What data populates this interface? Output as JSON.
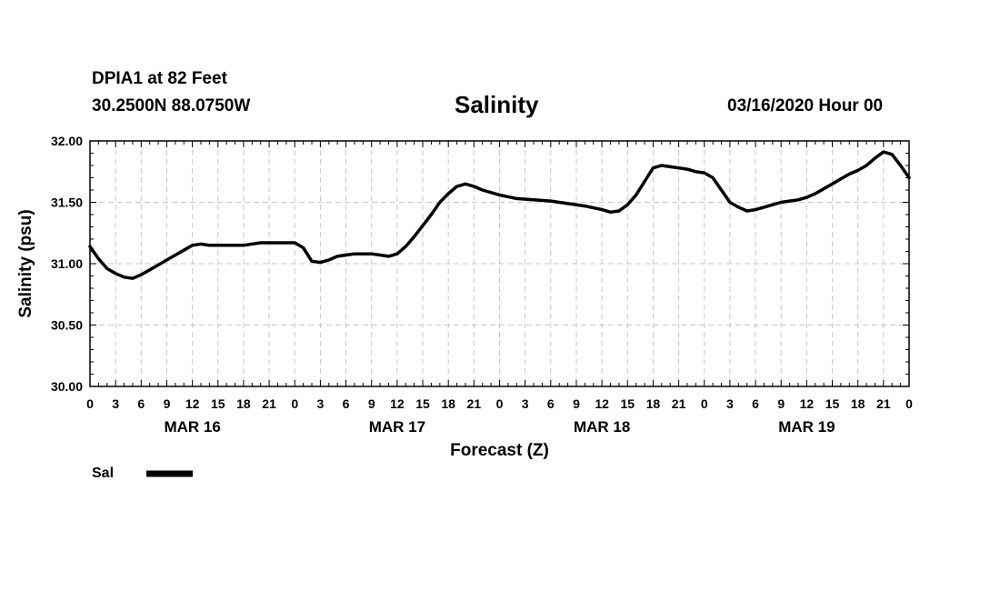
{
  "header": {
    "station": "DPIA1 at 82 Feet",
    "coords": "30.2500N 88.0750W",
    "run": "03/16/2020 Hour 00"
  },
  "chart_data": {
    "type": "line",
    "title": "Salinity",
    "xlabel": "Forecast (Z)",
    "ylabel": "Salinity (psu)",
    "ylim": [
      30.0,
      32.0
    ],
    "yticks": [
      30.0,
      30.5,
      31.0,
      31.5,
      32.0
    ],
    "ytick_labels": [
      "30.00",
      "30.50",
      "31.00",
      "31.50",
      "32.00"
    ],
    "xlim_hours": [
      0,
      96
    ],
    "xtick_step_hours": 3,
    "xtick_labels": [
      "0",
      "3",
      "6",
      "9",
      "12",
      "15",
      "18",
      "21",
      "0",
      "3",
      "6",
      "9",
      "12",
      "15",
      "18",
      "21",
      "0",
      "3",
      "6",
      "9",
      "12",
      "15",
      "18",
      "21",
      "0",
      "3",
      "6",
      "9",
      "12",
      "15",
      "18",
      "21",
      "0"
    ],
    "day_labels": [
      "MAR 16",
      "MAR 17",
      "MAR 18",
      "MAR 19"
    ],
    "grid": true,
    "legend": {
      "position": "bottom-left",
      "entries": [
        {
          "name": "Sal",
          "color": "#000000"
        }
      ]
    },
    "series": [
      {
        "name": "Sal",
        "color": "#000000",
        "x_hours": [
          0,
          1,
          2,
          3,
          4,
          5,
          6,
          7,
          8,
          9,
          10,
          11,
          12,
          13,
          14,
          16,
          18,
          20,
          22,
          23,
          24,
          25,
          26,
          27,
          28,
          29,
          30,
          31,
          32,
          33,
          34,
          35,
          36,
          37,
          38,
          39,
          40,
          41,
          42,
          43,
          44,
          45,
          46,
          48,
          50,
          52,
          54,
          56,
          58,
          60,
          61,
          62,
          63,
          64,
          65,
          66,
          67,
          68,
          69,
          70,
          71,
          72,
          73,
          74,
          75,
          76,
          77,
          78,
          79,
          80,
          81,
          82,
          83,
          84,
          85,
          86,
          87,
          88,
          89,
          90,
          91,
          92,
          93,
          94,
          95,
          96
        ],
        "values": [
          31.14,
          31.04,
          30.96,
          30.92,
          30.89,
          30.88,
          30.91,
          30.95,
          30.99,
          31.03,
          31.07,
          31.11,
          31.15,
          31.16,
          31.15,
          31.15,
          31.15,
          31.17,
          31.17,
          31.17,
          31.17,
          31.13,
          31.02,
          31.01,
          31.03,
          31.06,
          31.07,
          31.08,
          31.08,
          31.08,
          31.07,
          31.06,
          31.08,
          31.14,
          31.22,
          31.31,
          31.4,
          31.5,
          31.57,
          31.63,
          31.65,
          31.63,
          31.6,
          31.56,
          31.53,
          31.52,
          31.51,
          31.49,
          31.47,
          31.44,
          31.42,
          31.43,
          31.48,
          31.56,
          31.67,
          31.78,
          31.8,
          31.79,
          31.78,
          31.77,
          31.75,
          31.74,
          31.7,
          31.6,
          31.5,
          31.46,
          31.43,
          31.44,
          31.46,
          31.48,
          31.5,
          31.51,
          31.52,
          31.54,
          31.57,
          31.61,
          31.65,
          31.69,
          31.73,
          31.76,
          31.8,
          31.86,
          31.91,
          31.89,
          31.8,
          31.7
        ]
      }
    ]
  }
}
